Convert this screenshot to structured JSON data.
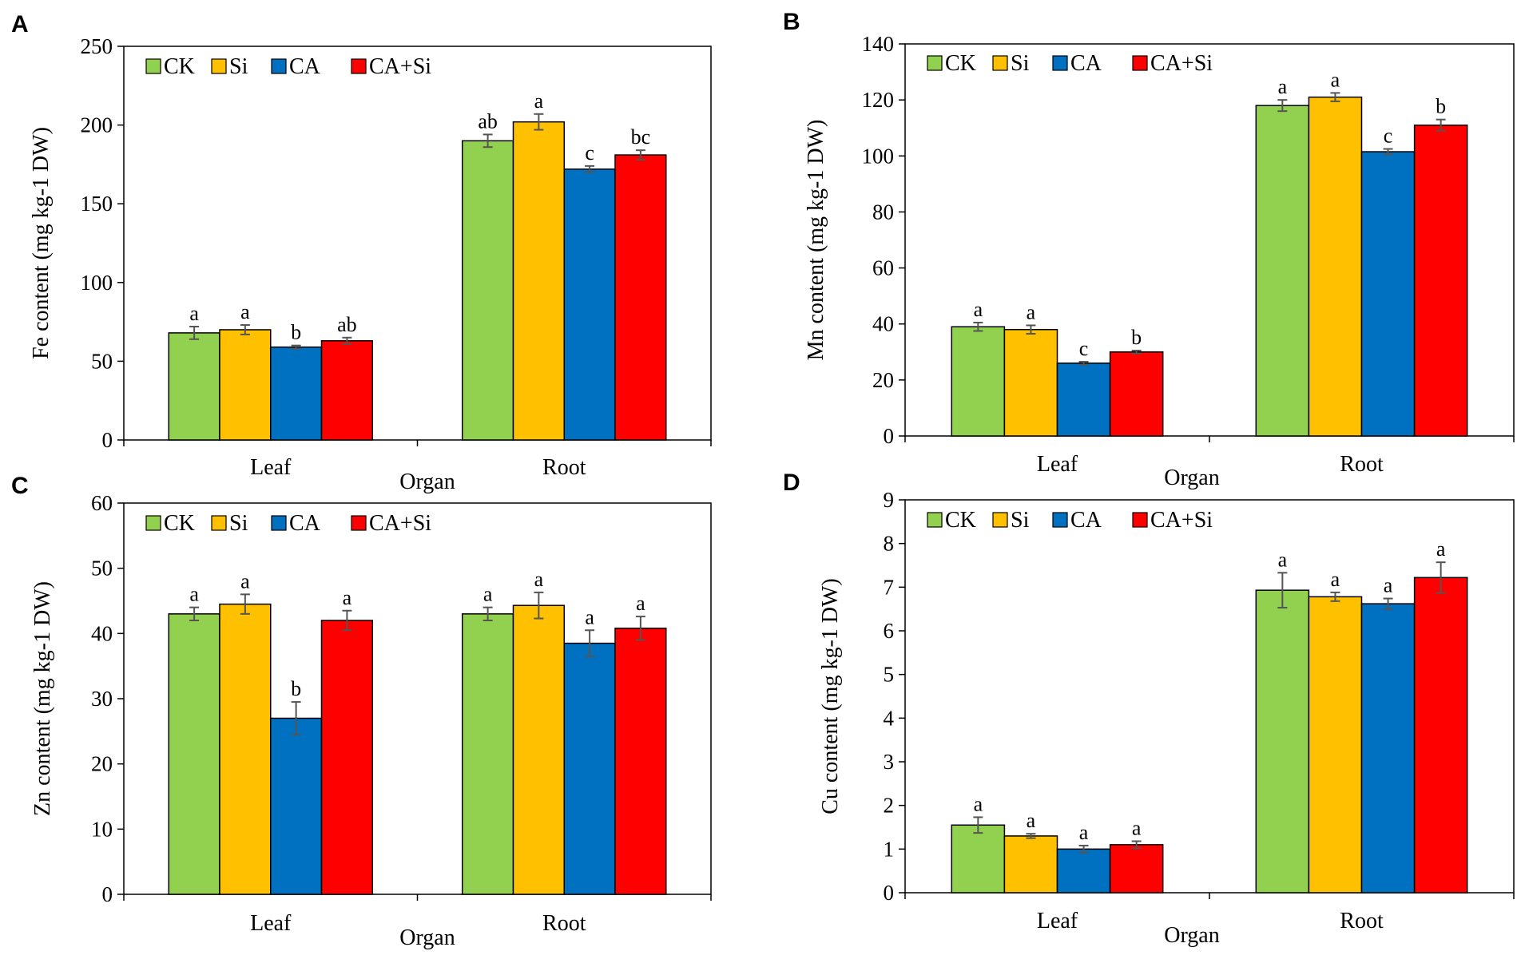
{
  "chart_data": [
    {
      "panel": "A",
      "type": "bar",
      "title": "",
      "xlabel": "Organ",
      "ylabel": "Fe content (mg kg-1 DW)",
      "ylim": [
        0,
        250
      ],
      "yticks": [
        0,
        50,
        100,
        150,
        200,
        250
      ],
      "categories": [
        "Leaf",
        "Root"
      ],
      "legend": "top-left",
      "series": [
        {
          "name": "CK",
          "color": "#92D050",
          "values": [
            68,
            190
          ],
          "errors": [
            4,
            4
          ],
          "letters": [
            "a",
            "ab"
          ]
        },
        {
          "name": "Si",
          "color": "#FFC000",
          "values": [
            70,
            202
          ],
          "errors": [
            3,
            5
          ],
          "letters": [
            "a",
            "a"
          ]
        },
        {
          "name": "CA",
          "color": "#0070C0",
          "values": [
            59,
            172
          ],
          "errors": [
            1,
            2
          ],
          "letters": [
            "b",
            "c"
          ]
        },
        {
          "name": "CA+Si",
          "color": "#FF0000",
          "values": [
            63,
            181
          ],
          "errors": [
            2,
            3
          ],
          "letters": [
            "ab",
            "bc"
          ]
        }
      ]
    },
    {
      "panel": "B",
      "type": "bar",
      "title": "",
      "xlabel": "Organ",
      "ylabel": "Mn content (mg kg-1 DW)",
      "ylim": [
        0,
        140
      ],
      "yticks": [
        0,
        20,
        40,
        60,
        80,
        100,
        120,
        140
      ],
      "categories": [
        "Leaf",
        "Root"
      ],
      "legend": "top-left",
      "series": [
        {
          "name": "CK",
          "color": "#92D050",
          "values": [
            39,
            118
          ],
          "errors": [
            1.5,
            2
          ],
          "letters": [
            "a",
            "a"
          ]
        },
        {
          "name": "Si",
          "color": "#FFC000",
          "values": [
            38,
            121
          ],
          "errors": [
            1.5,
            1.5
          ],
          "letters": [
            "a",
            "a"
          ]
        },
        {
          "name": "CA",
          "color": "#0070C0",
          "values": [
            26,
            101.5
          ],
          "errors": [
            0.5,
            1
          ],
          "letters": [
            "c",
            "c"
          ]
        },
        {
          "name": "CA+Si",
          "color": "#FF0000",
          "values": [
            30,
            111
          ],
          "errors": [
            0.5,
            2
          ],
          "letters": [
            "b",
            "b"
          ]
        }
      ]
    },
    {
      "panel": "C",
      "type": "bar",
      "title": "",
      "xlabel": "Organ",
      "ylabel": "Zn content (mg kg-1 DW)",
      "ylim": [
        0,
        60
      ],
      "yticks": [
        0,
        10,
        20,
        30,
        40,
        50,
        60
      ],
      "categories": [
        "Leaf",
        "Root"
      ],
      "legend": "top-left",
      "series": [
        {
          "name": "CK",
          "color": "#92D050",
          "values": [
            43,
            43
          ],
          "errors": [
            1,
            1
          ],
          "letters": [
            "a",
            "a"
          ]
        },
        {
          "name": "Si",
          "color": "#FFC000",
          "values": [
            44.5,
            44.3
          ],
          "errors": [
            1.5,
            2
          ],
          "letters": [
            "a",
            "a"
          ]
        },
        {
          "name": "CA",
          "color": "#0070C0",
          "values": [
            27,
            38.5
          ],
          "errors": [
            2.5,
            2
          ],
          "letters": [
            "b",
            "a"
          ]
        },
        {
          "name": "CA+Si",
          "color": "#FF0000",
          "values": [
            42,
            40.8
          ],
          "errors": [
            1.5,
            1.8
          ],
          "letters": [
            "a",
            "a"
          ]
        }
      ]
    },
    {
      "panel": "D",
      "type": "bar",
      "title": "",
      "xlabel": "Organ",
      "ylabel": "Cu content (mg kg-1 DW)",
      "ylim": [
        0,
        9
      ],
      "yticks": [
        0,
        1,
        2,
        3,
        4,
        5,
        6,
        7,
        8,
        9
      ],
      "categories": [
        "Leaf",
        "Root"
      ],
      "legend": "top-left",
      "series": [
        {
          "name": "CK",
          "color": "#92D050",
          "values": [
            1.55,
            6.93
          ],
          "errors": [
            0.18,
            0.4
          ],
          "letters": [
            "a",
            "a"
          ]
        },
        {
          "name": "Si",
          "color": "#FFC000",
          "values": [
            1.3,
            6.78
          ],
          "errors": [
            0.05,
            0.1
          ],
          "letters": [
            "a",
            "a"
          ]
        },
        {
          "name": "CA",
          "color": "#0070C0",
          "values": [
            1.0,
            6.62
          ],
          "errors": [
            0.08,
            0.12
          ],
          "letters": [
            "a",
            "a"
          ]
        },
        {
          "name": "CA+Si",
          "color": "#FF0000",
          "values": [
            1.1,
            7.22
          ],
          "errors": [
            0.08,
            0.35
          ],
          "letters": [
            "a",
            "a"
          ]
        }
      ]
    }
  ]
}
